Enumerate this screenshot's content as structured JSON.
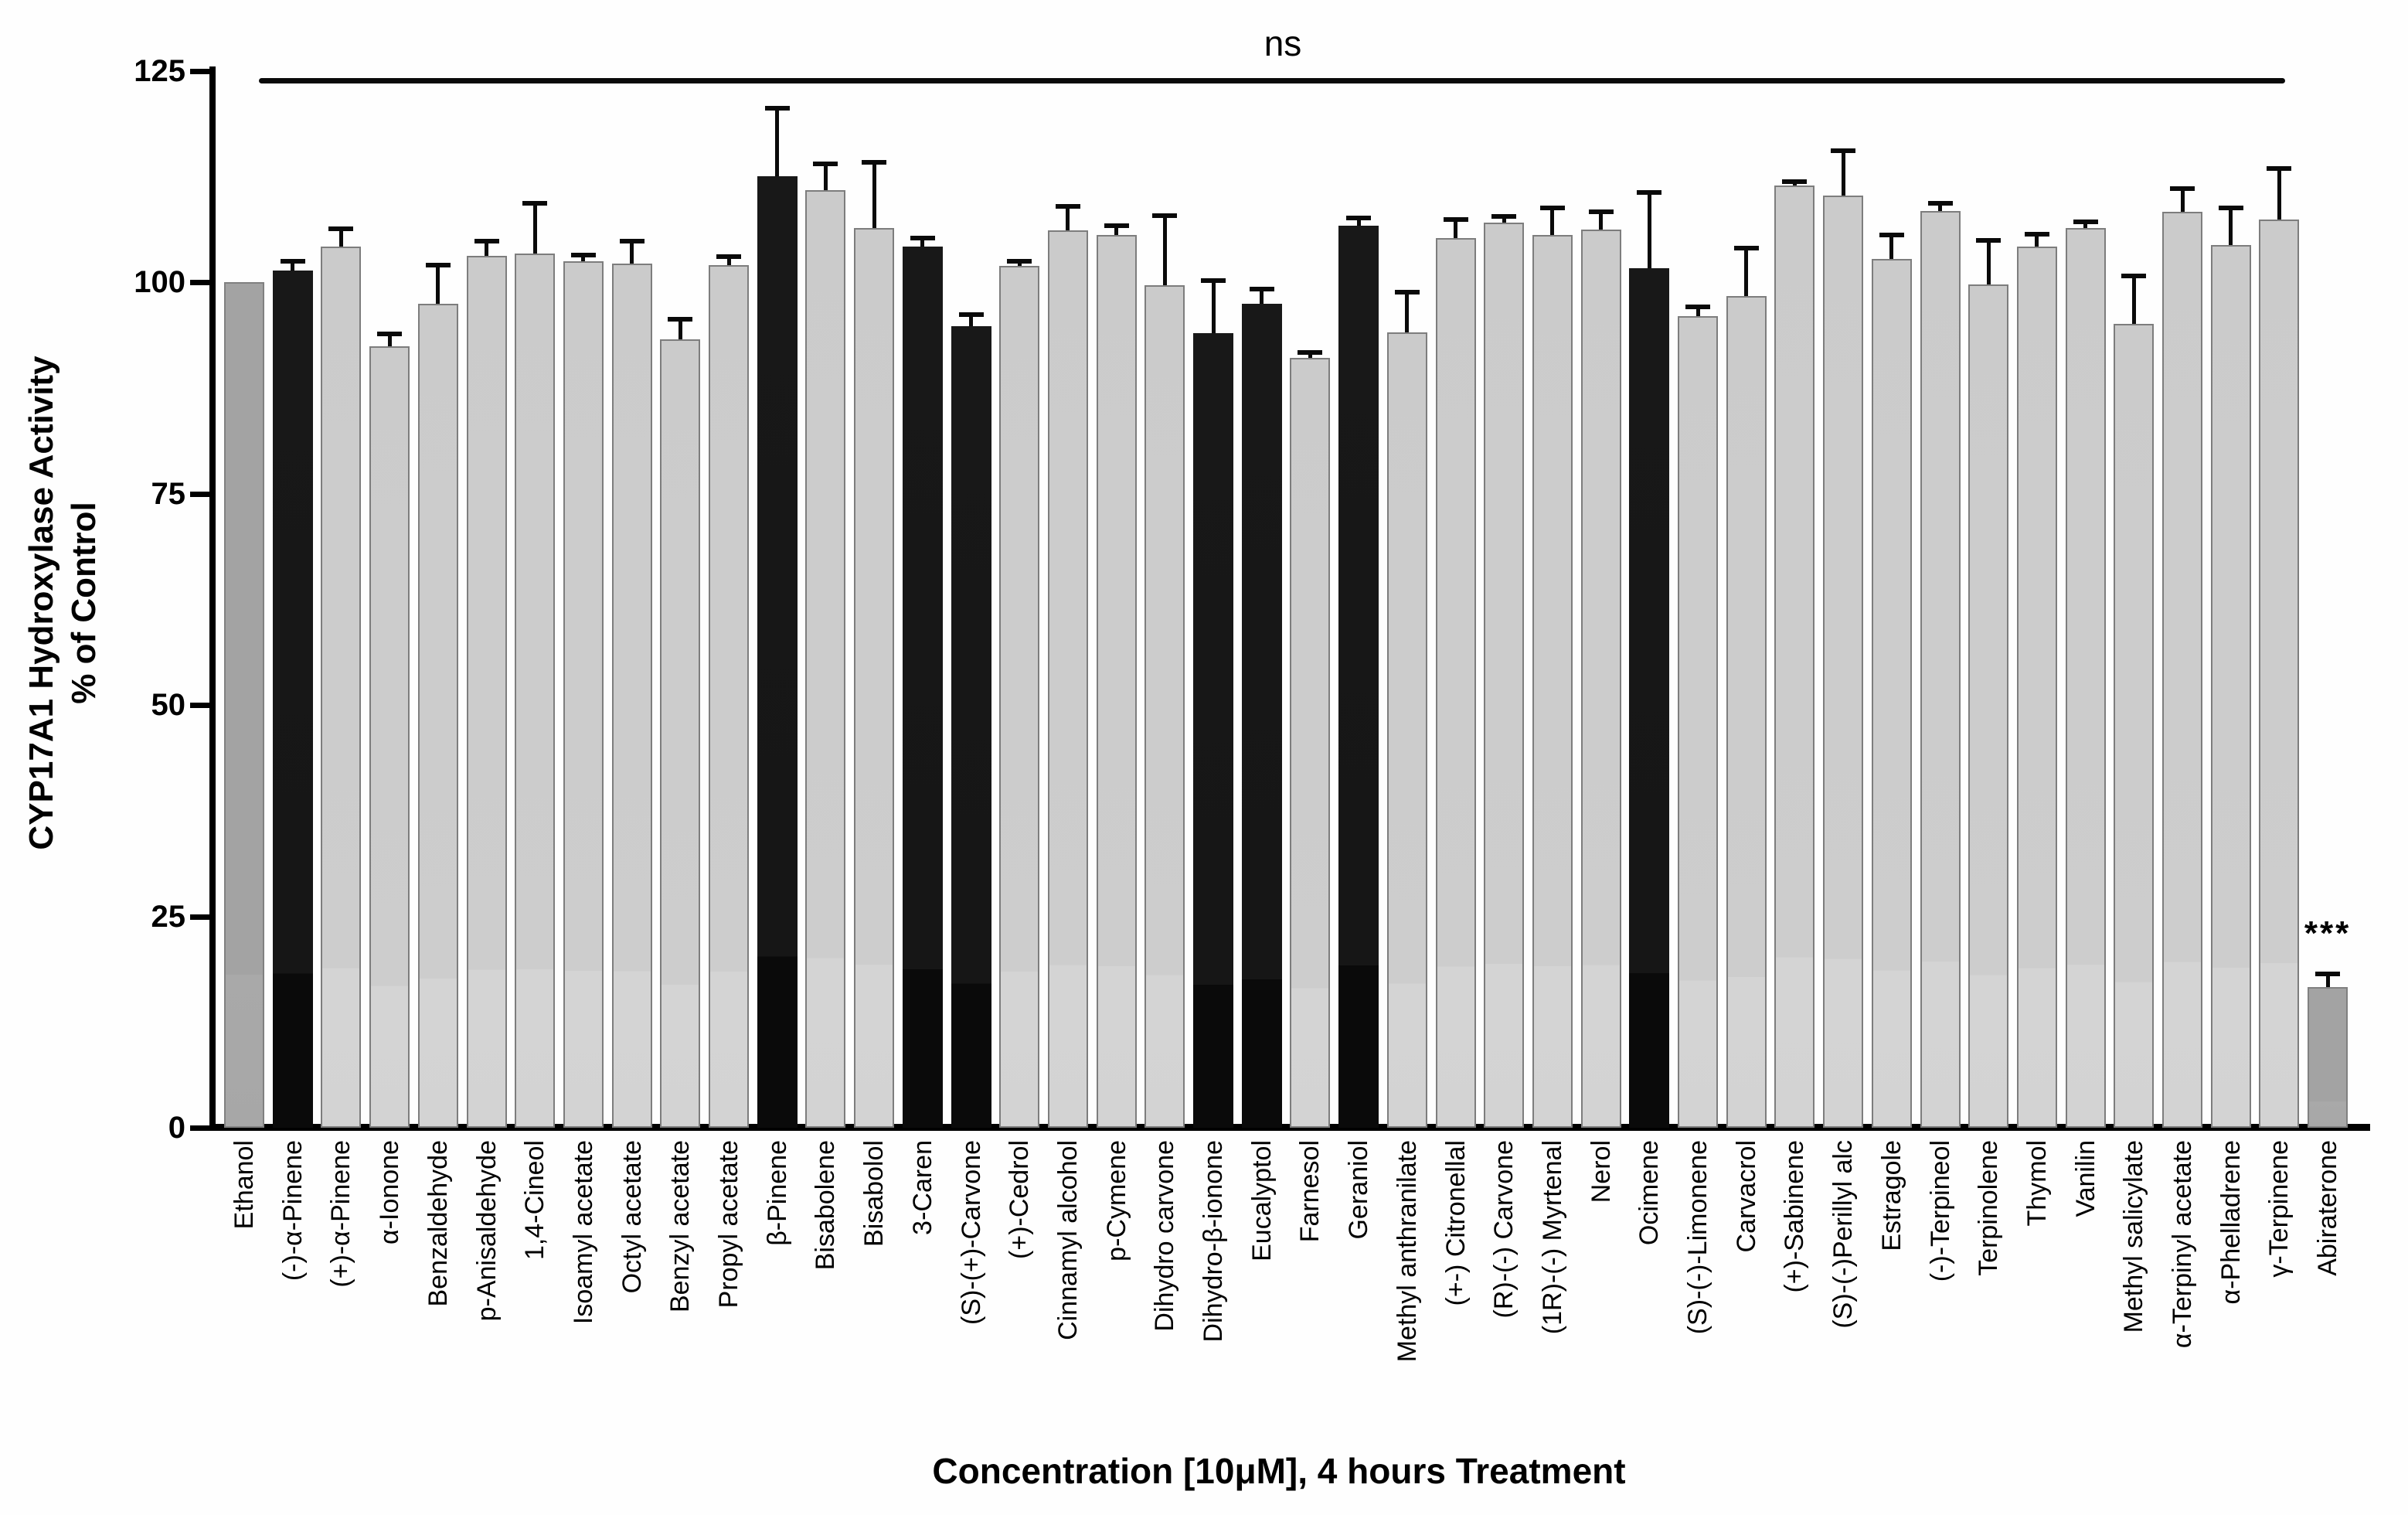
{
  "figure": {
    "ns_text": "ns",
    "significance_text": "***",
    "significance_category": "Abiraterone"
  },
  "y_axis": {
    "title_line1": "CYP17A1 Hydroxylase Activity",
    "title_line2": "% of Control",
    "ticks": [
      0,
      25,
      50,
      75,
      100,
      125
    ],
    "range": [
      0,
      125
    ]
  },
  "x_axis": {
    "title": "Concentration [10μM], 4 hours Treatment"
  },
  "colors": {
    "control_bar": "#a3a3a3",
    "highlight_bar": "#0e0e0e",
    "default_bar": "#d3d3d3",
    "bar_border": "#7d7d7d",
    "axis": "#000000",
    "background": "#fefefe"
  },
  "chart_data": {
    "type": "bar",
    "title": "",
    "xlabel": "Concentration [10μM], 4 hours Treatment",
    "ylabel": "CYP17A1 Hydroxylase Activity % of Control",
    "ylim": [
      0,
      125
    ],
    "grid": false,
    "legend": false,
    "categories": [
      "Ethanol",
      "(-)-α-Pinene",
      "(+)-α-Pinene",
      "α-Ionone",
      "Benzaldehyde",
      "p-Anisaldehyde",
      "1,4-Cineol",
      "Isoamyl acetate",
      "Octyl acetate",
      "Benzyl acetate",
      "Propyl acetate",
      "β-Pinene",
      "Bisabolene",
      "Bisabolol",
      "3-Caren",
      "(S)-(+)-Carvone",
      "(+)-Cedrol",
      "Cinnamyl alcohol",
      "p-Cymene",
      "Dihydro carvone",
      "Dihydro-β-ionone",
      "Eucalyptol",
      "Farnesol",
      "Geraniol",
      "Methyl anthranilate",
      "(+-) Citronellal",
      "(R)-(-) Carvone",
      "(1R)-(-) Myrtenal",
      "Nerol",
      "Ocimene",
      "(S)-(-)-Limonene",
      "Carvacrol",
      "(+)-Sabinene",
      "(S)-(-)Perillyl alc",
      "Estragole",
      "(-)-Terpineol",
      "Terpinolene",
      "Thymol",
      "Vanilin",
      "Methyl salicylate",
      "α-Terpinyl acetate",
      "α-Phelladrene",
      "γ-Terpinene",
      "Abiraterone"
    ],
    "series": [
      {
        "name": "CYP17A1 hydroxylase activity (% of control)",
        "values": [
          100.0,
          101.4,
          104.2,
          92.4,
          97.4,
          103.1,
          103.4,
          102.5,
          102.2,
          93.2,
          102.0,
          112.5,
          110.9,
          106.4,
          104.2,
          94.8,
          101.9,
          106.1,
          105.6,
          99.6,
          94.0,
          97.4,
          91.0,
          106.7,
          94.1,
          105.2,
          107.0,
          105.6,
          106.2,
          101.6,
          96.0,
          98.4,
          111.4,
          110.2,
          102.7,
          108.4,
          99.7,
          104.2,
          106.4,
          95.1,
          108.3,
          104.4,
          107.4,
          16.6
        ],
        "errors_plus": [
          0,
          1.1,
          2.1,
          1.5,
          4.6,
          1.7,
          5.9,
          0.7,
          2.6,
          2.4,
          1.0,
          8.1,
          3.1,
          7.8,
          1.0,
          1.4,
          0.6,
          2.9,
          1.1,
          8.3,
          6.2,
          1.8,
          0.7,
          0.9,
          4.7,
          2.2,
          0.8,
          3.2,
          2.1,
          9.0,
          1.1,
          5.6,
          0.5,
          5.3,
          2.9,
          0.9,
          5.2,
          1.5,
          0.7,
          5.6,
          2.8,
          4.4,
          6.0,
          1.6
        ]
      }
    ],
    "bar_styles": [
      "control",
      "highlight",
      "default",
      "default",
      "default",
      "default",
      "default",
      "default",
      "default",
      "default",
      "default",
      "highlight",
      "default",
      "default",
      "highlight",
      "highlight",
      "default",
      "default",
      "default",
      "default",
      "highlight",
      "highlight",
      "default",
      "highlight",
      "default",
      "default",
      "default",
      "default",
      "default",
      "highlight",
      "default",
      "default",
      "default",
      "default",
      "default",
      "default",
      "default",
      "default",
      "default",
      "default",
      "default",
      "default",
      "default",
      "control"
    ],
    "annotations": [
      {
        "type": "line",
        "text": "ns",
        "span_categories": [
          "(-)-α-Pinene",
          "γ-Terpinene"
        ],
        "y": 123
      },
      {
        "type": "significance",
        "text": "***",
        "category": "Abiraterone",
        "y": 23
      }
    ]
  }
}
